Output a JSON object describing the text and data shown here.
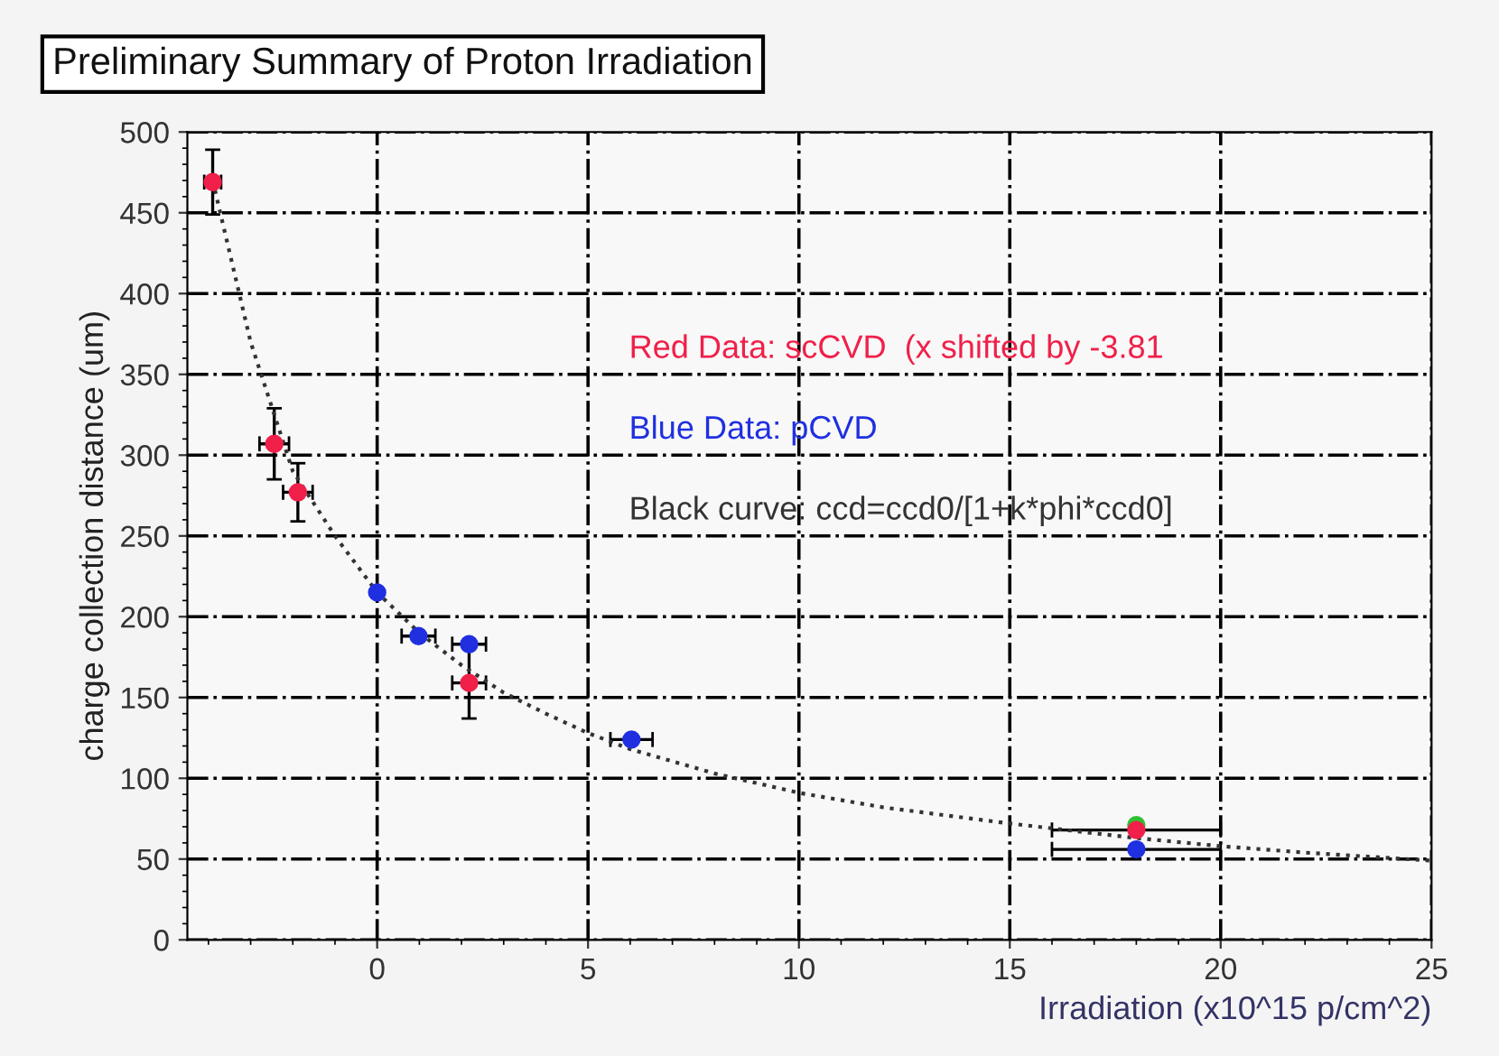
{
  "chart_data": {
    "type": "scatter",
    "title": "Preliminary Summary of Proton Irradiation",
    "xlabel": "Irradiation (x10^15 p/cm^2)",
    "ylabel": "charge collection distance (um)",
    "xlim": [
      -4.5,
      25
    ],
    "ylim": [
      0,
      500
    ],
    "xticks": [
      0,
      5,
      10,
      15,
      20,
      25
    ],
    "yticks": [
      0,
      50,
      100,
      150,
      200,
      250,
      300,
      350,
      400,
      450,
      500
    ],
    "grid": true,
    "marker": "circle",
    "annotations": [
      "Red Data: scCVD  (x shifted by -3.81",
      "Blue Data: pCVD",
      "Black curve: ccd=ccd0/[1+k*phi*ccd0]"
    ],
    "series": [
      {
        "color": "#f0204a",
        "x": [
          -3.9,
          -2.44,
          -1.88,
          2.18,
          18
        ],
        "values": [
          469,
          307,
          277,
          159,
          68
        ],
        "errors": [
          20,
          22,
          18,
          22,
          null
        ],
        "xerrors": [
          0.2,
          0.35,
          0.35,
          0.4,
          2
        ]
      },
      {
        "color": "#2030e0",
        "x": [
          0,
          0.98,
          2.18,
          6.03,
          18
        ],
        "values": [
          215,
          188,
          183,
          124,
          56
        ],
        "errors": [
          null,
          null,
          null,
          null,
          null
        ],
        "xerrors": [
          null,
          0.4,
          0.4,
          0.5,
          2
        ]
      },
      {
        "type": "line",
        "line_style": "dotted",
        "marker": "none",
        "color": "#333333",
        "x": [
          -3.9,
          -3,
          -2,
          -1,
          0,
          1,
          2,
          3,
          4,
          5,
          6,
          8,
          10,
          12,
          15,
          18,
          20,
          22,
          25
        ],
        "values": [
          470,
          370,
          290,
          250,
          215,
          190,
          170,
          153,
          140,
          128,
          118,
          103,
          91,
          82,
          72,
          63,
          58,
          54,
          49
        ]
      },
      {
        "color": "#30c030",
        "x": [
          18
        ],
        "values": [
          71
        ]
      }
    ]
  }
}
